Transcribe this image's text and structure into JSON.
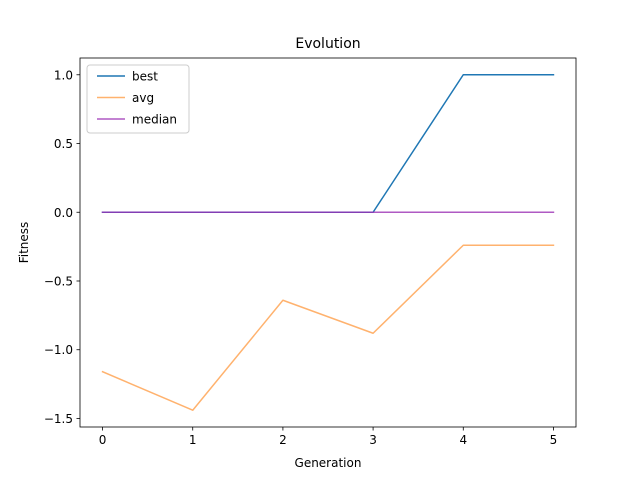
{
  "chart_data": {
    "type": "line",
    "title": "Evolution",
    "xlabel": "Generation",
    "ylabel": "Fitness",
    "x": [
      0,
      1,
      2,
      3,
      4,
      5
    ],
    "series": [
      {
        "name": "best",
        "color": "#1f77b4",
        "alpha": 1.0,
        "values": [
          0,
          0,
          0,
          0,
          1,
          1
        ]
      },
      {
        "name": "avg",
        "color": "#ff7f0e",
        "alpha": 0.6,
        "values": [
          -1.16,
          -1.44,
          -0.64,
          -0.88,
          -0.24,
          -0.24
        ]
      },
      {
        "name": "median",
        "color": "#9b30b4",
        "alpha": 0.8,
        "values": [
          0,
          0,
          0,
          0,
          0,
          0
        ]
      }
    ],
    "xlim": [
      -0.25,
      5.25
    ],
    "ylim": [
      -1.562,
      1.122
    ],
    "xticks": [
      0,
      1,
      2,
      3,
      4,
      5
    ],
    "xtick_labels": [
      "0",
      "1",
      "2",
      "3",
      "4",
      "5"
    ],
    "yticks": [
      1.0,
      0.5,
      0.0,
      -0.5,
      -1.0,
      -1.5
    ],
    "ytick_labels": [
      "1.0",
      "0.5",
      "0.0",
      "−0.5",
      "−1.0",
      "−1.5"
    ],
    "grid": false,
    "legend_position": "top-left"
  }
}
